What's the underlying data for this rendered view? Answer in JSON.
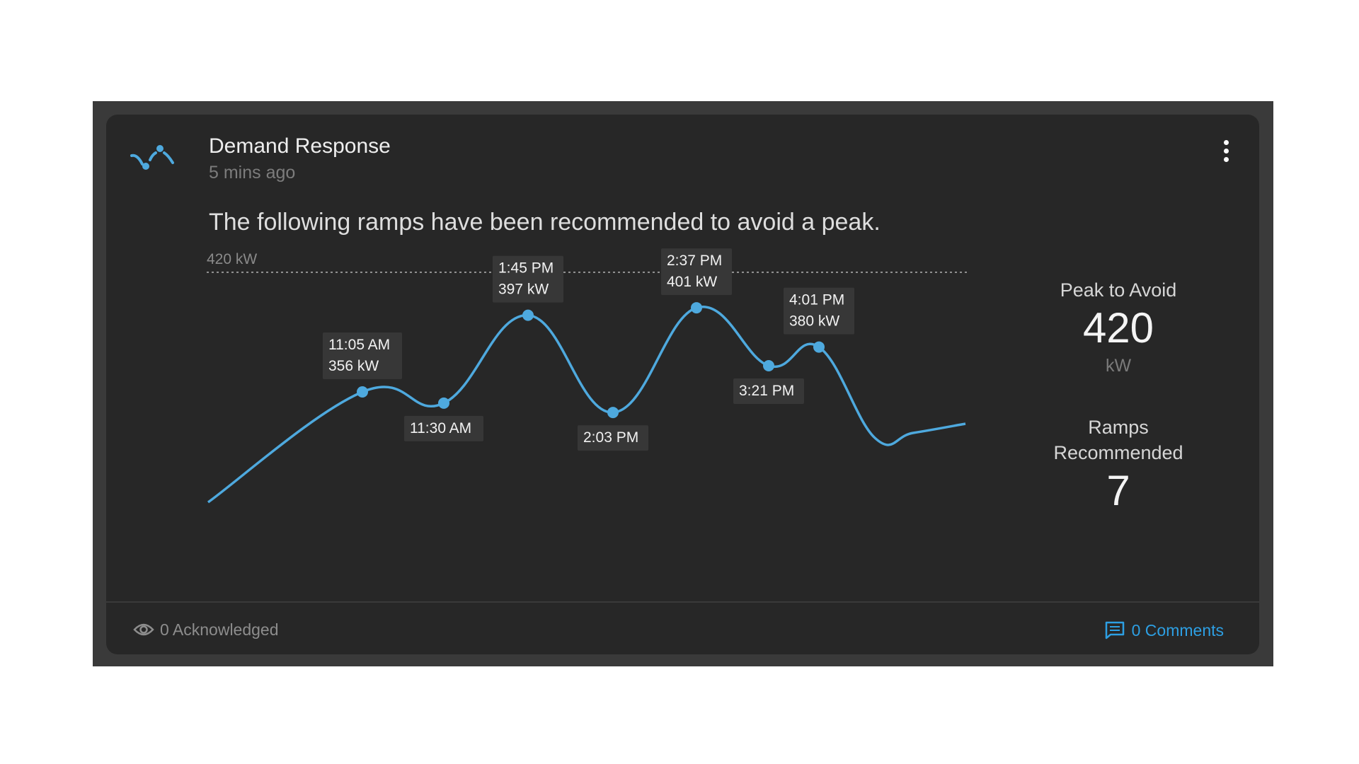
{
  "card": {
    "title": "Demand Response",
    "timestamp": "5 mins ago",
    "message": "The following ramps have been recommended to avoid a peak.",
    "icon": "demand-response-icon",
    "menu_icon": "more-vert-icon"
  },
  "stats": {
    "peak_label": "Peak to Avoid",
    "peak_value": "420",
    "peak_unit": "kW",
    "ramps_label": "Ramps Recommended",
    "ramps_value": "7"
  },
  "footer": {
    "acknowledged": "0 Acknowledged",
    "acknowledged_icon": "eye-icon",
    "comments": "0 Comments",
    "comments_icon": "comment-icon"
  },
  "colors": {
    "accent": "#4ea9de",
    "card_bg": "#272727",
    "frame_bg": "#3a3a3a",
    "comments_link": "#2d9fe3"
  },
  "chart_data": {
    "type": "line",
    "threshold": {
      "value": 420,
      "label": "420 kW",
      "style": "dotted"
    },
    "ylim": [
      300,
      440
    ],
    "series": [
      {
        "values": [
          {
            "x": "11:05 AM",
            "y": 356
          },
          {
            "x": "11:30 AM",
            "y": 350
          },
          {
            "x": "1:45 PM",
            "y": 397
          },
          {
            "x": "2:03 PM",
            "y": 345
          },
          {
            "x": "2:37 PM",
            "y": 401
          },
          {
            "x": "3:21 PM",
            "y": 370
          },
          {
            "x": "4:01 PM",
            "y": 380
          }
        ]
      }
    ],
    "annotations": [
      {
        "time": "11:05 AM",
        "value": "356 kW"
      },
      {
        "time": "11:30 AM"
      },
      {
        "time": "1:45 PM",
        "value": "397 kW"
      },
      {
        "time": "2:03 PM"
      },
      {
        "time": "2:37 PM",
        "value": "401 kW"
      },
      {
        "time": "3:21 PM"
      },
      {
        "time": "4:01 PM",
        "value": "380 kW"
      }
    ]
  }
}
